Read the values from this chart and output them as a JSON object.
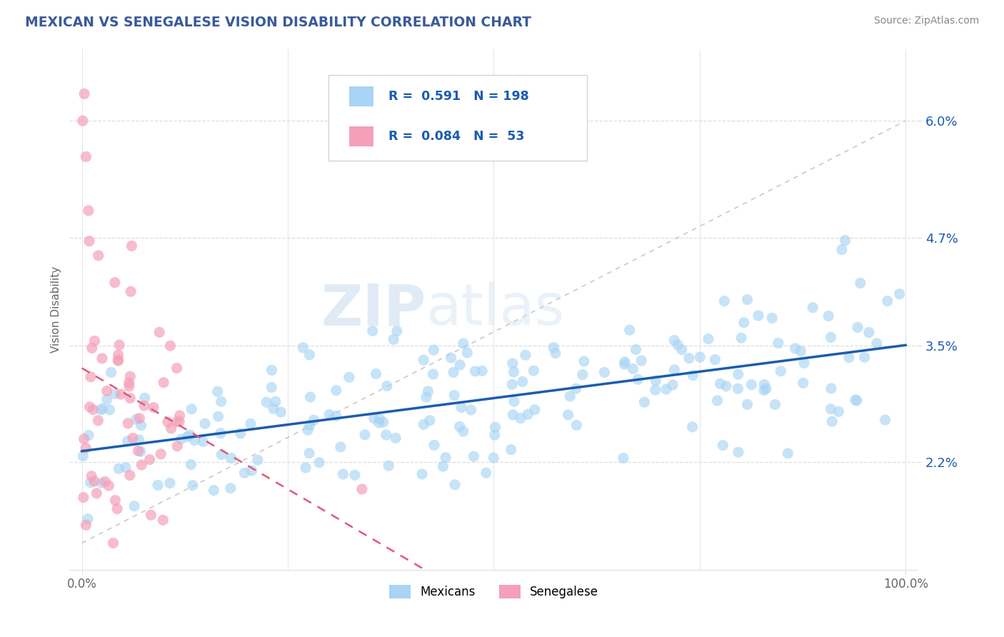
{
  "title": "MEXICAN VS SENEGALESE VISION DISABILITY CORRELATION CHART",
  "source": "Source: ZipAtlas.com",
  "ylabel": "Vision Disability",
  "yticks": [
    0.022,
    0.035,
    0.047,
    0.06
  ],
  "ytick_labels": [
    "2.2%",
    "3.5%",
    "4.7%",
    "6.0%"
  ],
  "xlim": [
    -0.015,
    1.015
  ],
  "ylim": [
    0.01,
    0.068
  ],
  "mexican_R": 0.591,
  "mexican_N": 198,
  "senegalese_R": 0.084,
  "senegalese_N": 53,
  "mexican_color": "#A8D4F5",
  "senegalese_color": "#F5A0B8",
  "mexican_line_color": "#1A5CB0",
  "senegalese_line_color": "#E05878",
  "ref_line_color": "#BBBBBB",
  "legend_label_mexican": "Mexicans",
  "legend_label_senegalese": "Senegalese",
  "watermark": "ZIPAtlas",
  "background_color": "#ffffff",
  "grid_color": "#DEDEDE",
  "title_color": "#3A5A9A",
  "source_color": "#888888",
  "axis_label_color": "#666666",
  "tick_label_color": "#1A5CB0"
}
